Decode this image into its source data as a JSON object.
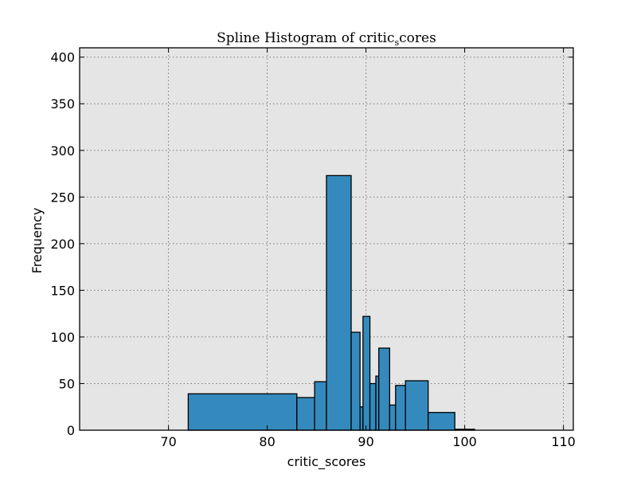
{
  "chart_data": {
    "type": "bar",
    "title": "Spline Histogram of critic_scores",
    "title_main": "Spline Histogram of critic",
    "title_sub": "s",
    "title_tail": "cores",
    "xlabel": "critic_scores",
    "ylabel": "Frequency",
    "xlim": [
      61,
      111
    ],
    "ylim": [
      0,
      410
    ],
    "xticks": [
      70,
      80,
      90,
      100,
      110
    ],
    "yticks": [
      0,
      50,
      100,
      150,
      200,
      250,
      300,
      350,
      400
    ],
    "grid": true,
    "bar_color": "#348abd",
    "background_color": "#e5e5e5",
    "bins": [
      {
        "x0": 72.0,
        "x1": 83.0,
        "value": 39
      },
      {
        "x0": 83.0,
        "x1": 84.8,
        "value": 35
      },
      {
        "x0": 84.8,
        "x1": 86.0,
        "value": 52
      },
      {
        "x0": 86.0,
        "x1": 88.5,
        "value": 273
      },
      {
        "x0": 88.5,
        "x1": 89.4,
        "value": 105
      },
      {
        "x0": 89.4,
        "x1": 89.7,
        "value": 25
      },
      {
        "x0": 89.7,
        "x1": 90.4,
        "value": 122
      },
      {
        "x0": 90.4,
        "x1": 91.0,
        "value": 50
      },
      {
        "x0": 91.0,
        "x1": 91.3,
        "value": 58
      },
      {
        "x0": 91.3,
        "x1": 92.4,
        "value": 88
      },
      {
        "x0": 92.4,
        "x1": 93.0,
        "value": 27
      },
      {
        "x0": 93.0,
        "x1": 94.0,
        "value": 48
      },
      {
        "x0": 94.0,
        "x1": 96.3,
        "value": 53
      },
      {
        "x0": 96.3,
        "x1": 99.0,
        "value": 19
      },
      {
        "x0": 99.0,
        "x1": 101.0,
        "value": 1
      }
    ]
  }
}
